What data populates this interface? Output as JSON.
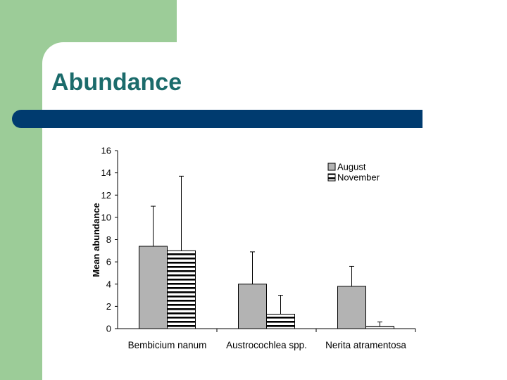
{
  "slide": {
    "title": "Abundance"
  },
  "colors": {
    "side_green": "#9ccc98",
    "title_text": "#1b6b6b",
    "title_bar": "#003b6f",
    "august_fill": "#b3b3b3"
  },
  "chart_data": {
    "type": "bar",
    "ylabel": "Mean abundance",
    "xlabel": "",
    "ylim": [
      0,
      16
    ],
    "yticks": [
      0,
      2,
      4,
      6,
      8,
      10,
      12,
      14,
      16
    ],
    "categories": [
      "Bembicium nanum",
      "Austrocochlea spp.",
      "Nerita atramentosa"
    ],
    "series": [
      {
        "name": "August",
        "values": [
          7.4,
          4.0,
          3.8
        ],
        "error": [
          3.6,
          2.9,
          1.8
        ],
        "pattern": "solid-gray"
      },
      {
        "name": "November",
        "values": [
          7.0,
          1.3,
          0.2
        ],
        "error": [
          6.7,
          1.7,
          0.4
        ],
        "pattern": "horizontal-stripes"
      }
    ],
    "legend_position": "top-right",
    "grid": false
  }
}
